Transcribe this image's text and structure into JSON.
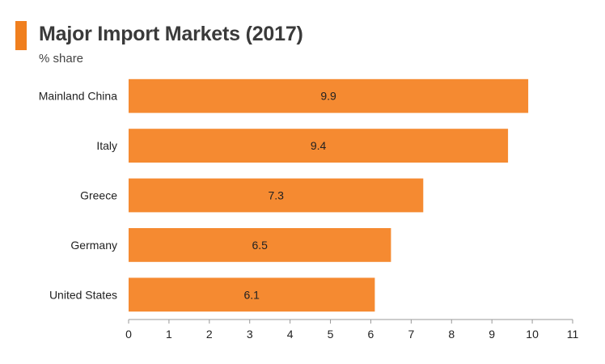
{
  "header": {
    "title": "Major Import Markets (2017)",
    "subtitle": "% share"
  },
  "colors": {
    "accent": "#f07f1e",
    "bar": "#f58a31",
    "axis": "#999999",
    "text": "#222222"
  },
  "chart_data": {
    "type": "bar",
    "orientation": "horizontal",
    "title": "Major Import Markets (2017)",
    "subtitle": "% share",
    "categories": [
      "Mainland China",
      "Italy",
      "Greece",
      "Germany",
      "United States"
    ],
    "values": [
      9.9,
      9.4,
      7.3,
      6.5,
      6.1
    ],
    "data_labels": [
      "9.9",
      "9.4",
      "7.3",
      "6.5",
      "6.1"
    ],
    "xlim": [
      0,
      11
    ],
    "xticks": [
      0,
      1,
      2,
      3,
      4,
      5,
      6,
      7,
      8,
      9,
      10,
      11
    ],
    "xlabel": "",
    "ylabel": "",
    "grid": false,
    "legend": "none"
  }
}
